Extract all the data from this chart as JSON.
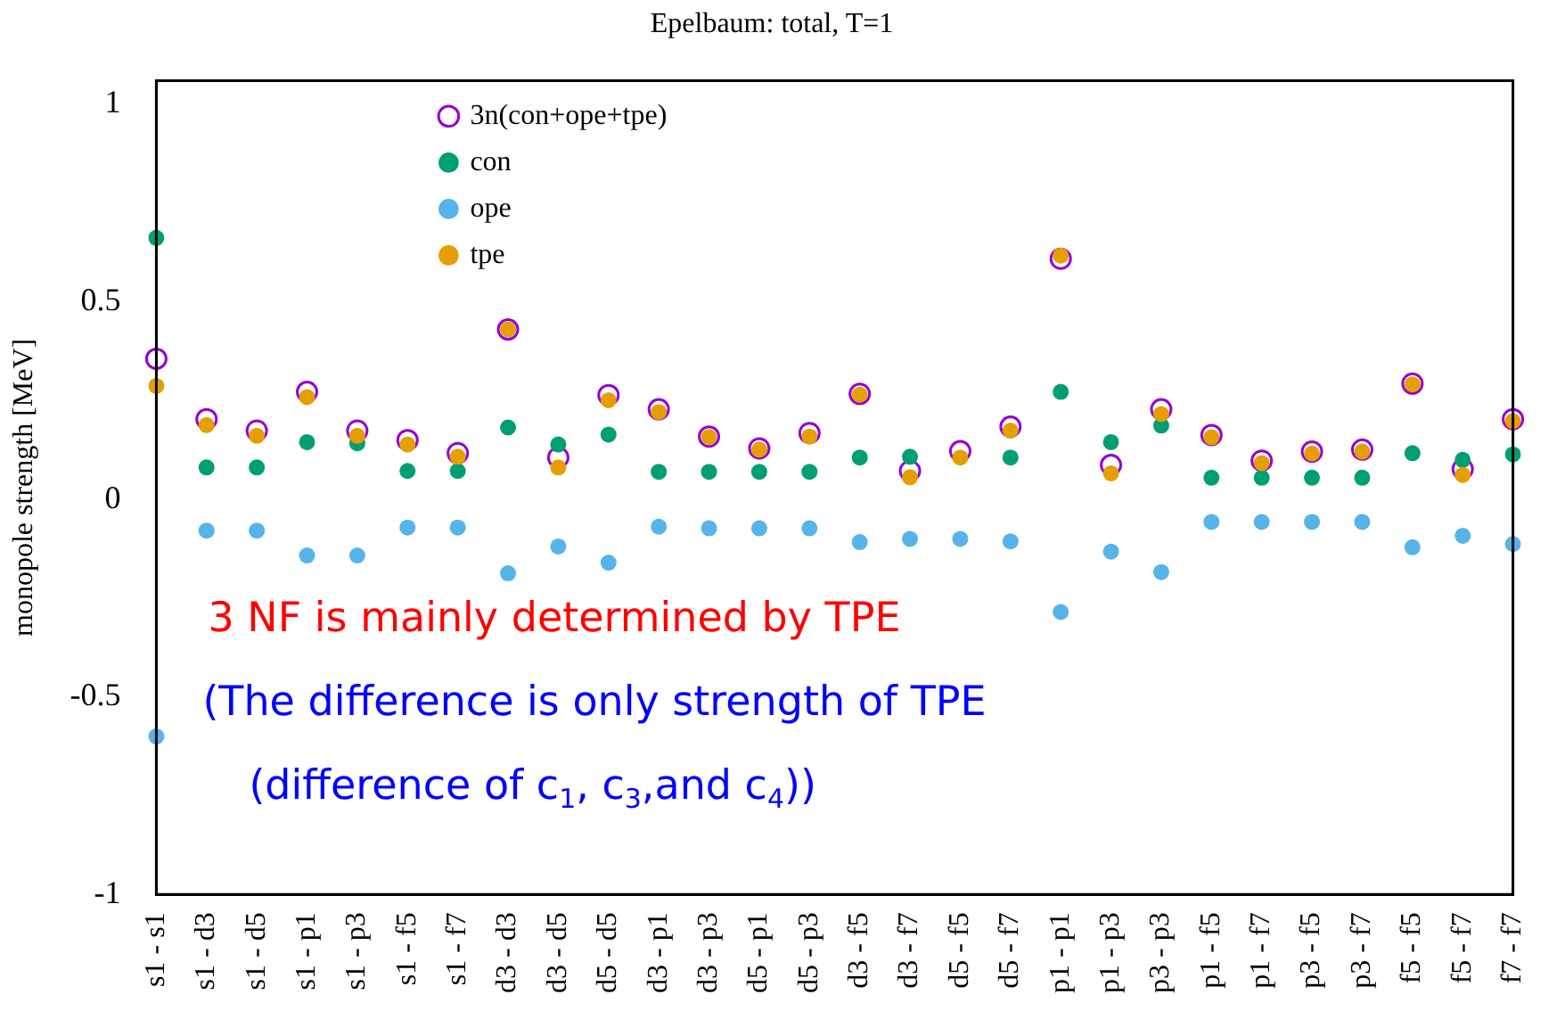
{
  "chart_data": {
    "type": "scatter",
    "title": "Epelbaum: total, T=1",
    "ylabel": "monopole strength [MeV]",
    "categories": [
      "s1 - s1",
      "s1 - d3",
      "s1 - d5",
      "s1 - p1",
      "s1 - p3",
      "s1 - f5",
      "s1 - f7",
      "d3 - d3",
      "d3 - d5",
      "d5 - d5",
      "d3 - p1",
      "d3 - p3",
      "d5 - p1",
      "d5 - p3",
      "d3 - f5",
      "d3 - f7",
      "d5 - f5",
      "d5 - f7",
      "p1 - p1",
      "p1 - p3",
      "p3 - p3",
      "p1 - f5",
      "p1 - f7",
      "p3 - f5",
      "p3 - f7",
      "f5 - f5",
      "f5 - f7",
      "f7 - f7"
    ],
    "series": [
      {
        "name": "3n(con+ope+tpe)",
        "color": "#9400d3",
        "values": [
          0.356,
          0.203,
          0.174,
          0.272,
          0.174,
          0.15,
          0.117,
          0.43,
          0.106,
          0.264,
          0.228,
          0.159,
          0.129,
          0.168,
          0.267,
          0.072,
          0.122,
          0.184,
          0.609,
          0.087,
          0.228,
          0.163,
          0.098,
          0.121,
          0.126,
          0.293,
          0.077,
          0.203
        ]
      },
      {
        "name": "con",
        "color": "#009e73",
        "values": [
          0.662,
          0.081,
          0.081,
          0.145,
          0.142,
          0.072,
          0.072,
          0.182,
          0.139,
          0.164,
          0.07,
          0.07,
          0.07,
          0.07,
          0.106,
          0.108,
          null,
          0.106,
          0.272,
          0.145,
          0.187,
          0.055,
          0.055,
          0.055,
          0.055,
          0.117,
          0.1,
          0.114
        ]
      },
      {
        "name": "ope",
        "color": "#56b4e9",
        "values": [
          -0.6,
          -0.079,
          -0.079,
          -0.142,
          -0.142,
          -0.071,
          -0.071,
          -0.187,
          -0.119,
          -0.16,
          -0.069,
          -0.073,
          -0.073,
          -0.073,
          -0.108,
          -0.1,
          -0.1,
          -0.106,
          -0.285,
          -0.132,
          -0.184,
          -0.057,
          -0.057,
          -0.057,
          -0.057,
          -0.121,
          -0.092,
          -0.113
        ]
      },
      {
        "name": "tpe",
        "color": "#e69f00",
        "values": [
          0.287,
          0.188,
          0.161,
          0.259,
          0.161,
          0.139,
          0.108,
          0.43,
          0.081,
          0.251,
          0.221,
          0.158,
          0.126,
          0.159,
          0.265,
          0.056,
          0.106,
          0.174,
          0.617,
          0.066,
          0.216,
          0.157,
          0.092,
          0.116,
          0.121,
          0.291,
          0.062,
          0.198
        ]
      }
    ],
    "ylim": [
      -1,
      1.06
    ],
    "yticks": [
      1,
      0.5,
      0,
      -0.5,
      -1
    ],
    "grid": false,
    "legend": "top left",
    "marker": "circle",
    "annotations": [
      "3 NF is mainly determined by TPE",
      "(The difference is only strength of TPE",
      "(difference of c$_{1}$, c$_{3}$,and c$_{4}$))"
    ]
  }
}
